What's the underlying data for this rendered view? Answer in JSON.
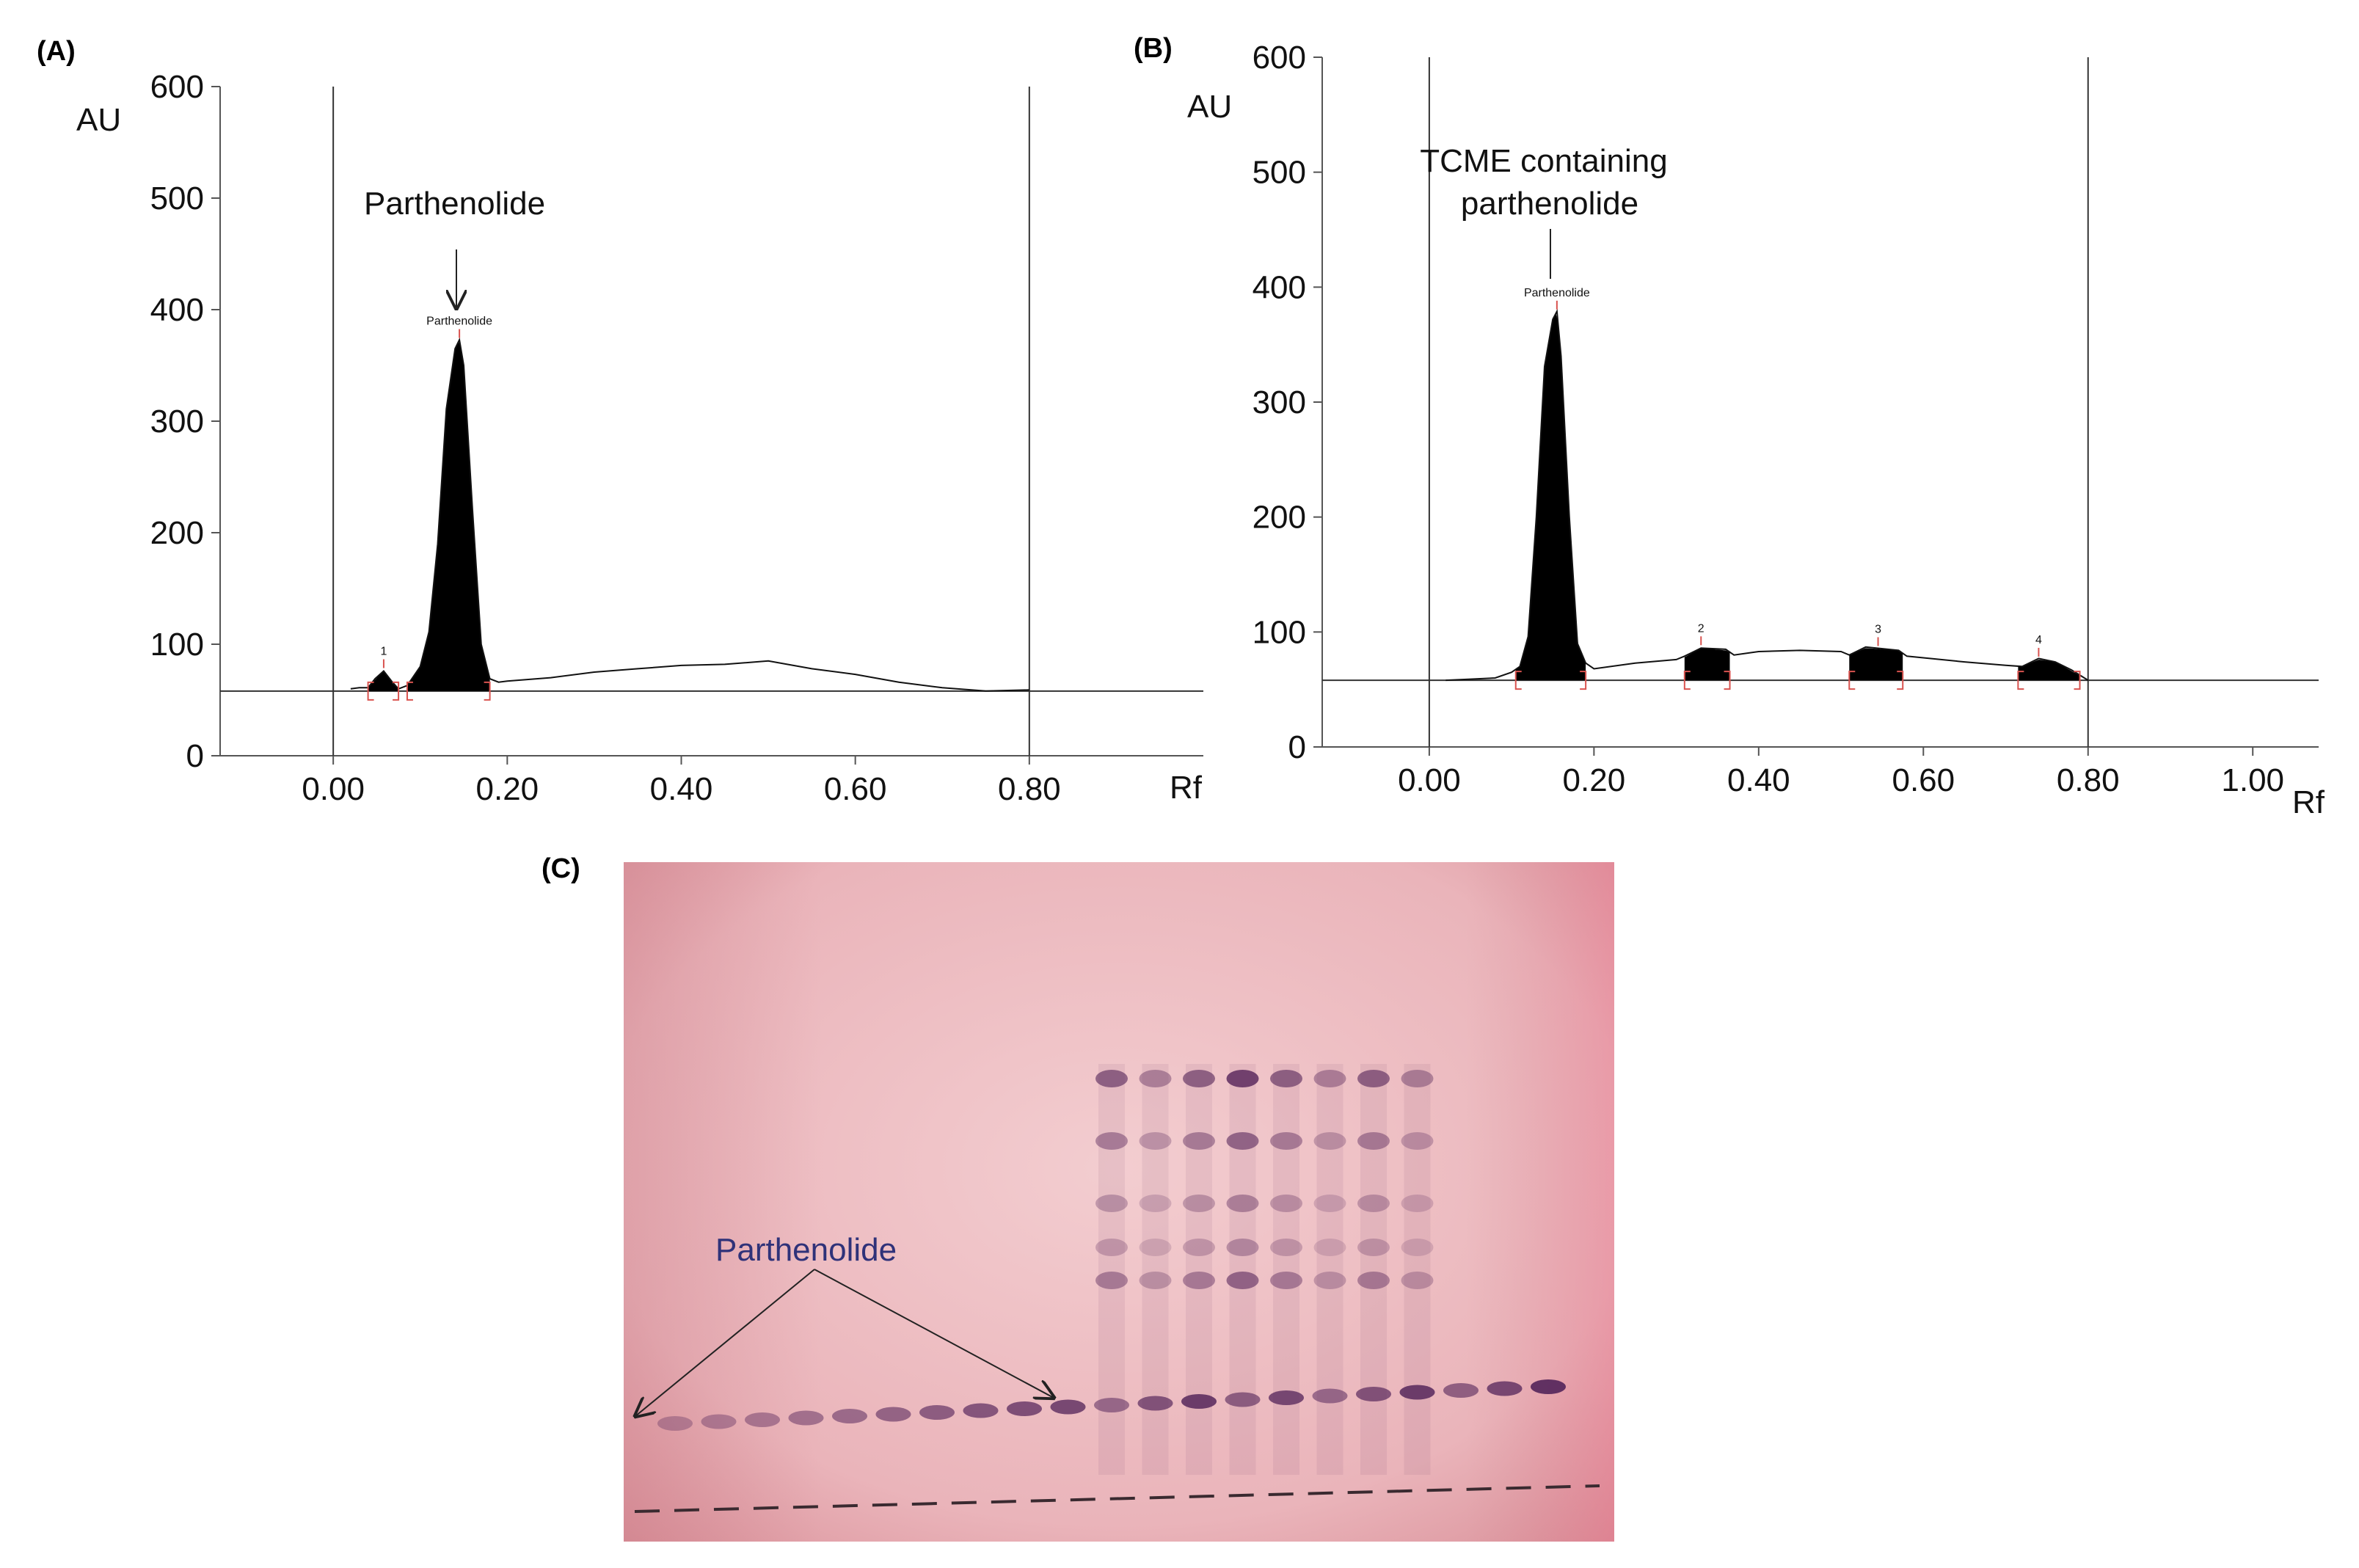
{
  "figure": {
    "panels": [
      {
        "letter": "(A)"
      },
      {
        "letter": "(B)"
      },
      {
        "letter": "(C)"
      }
    ]
  },
  "chart_data": [
    {
      "panel": "(A)",
      "type": "line",
      "title": "",
      "xlabel": "Rf",
      "ylabel": "AU",
      "xlim": [
        -0.13,
        1.0
      ],
      "ylim": [
        0,
        600
      ],
      "xticks": [
        0.0,
        0.2,
        0.4,
        0.6,
        0.8
      ],
      "xtick_labels": [
        "0.00",
        "0.20",
        "0.40",
        "0.60",
        "0.80"
      ],
      "yticks": [
        0,
        100,
        200,
        300,
        400,
        500,
        600
      ],
      "ytick_labels": [
        "0",
        "100",
        "200",
        "300",
        "400",
        "500",
        "600"
      ],
      "vertical_lines": [
        0.0,
        0.8
      ],
      "baseline": 58,
      "series": [
        {
          "x": [
            0.02,
            0.03,
            0.04,
            0.048,
            0.058,
            0.068,
            0.075,
            0.085,
            0.1,
            0.11,
            0.12,
            0.13,
            0.14,
            0.145,
            0.15,
            0.16,
            0.17,
            0.18,
            0.19,
            0.2,
            0.25,
            0.3,
            0.35,
            0.4,
            0.45,
            0.5,
            0.55,
            0.6,
            0.65,
            0.7,
            0.75,
            0.8
          ],
          "y": [
            60,
            60,
            61,
            68,
            76,
            65,
            60,
            62,
            80,
            110,
            190,
            310,
            365,
            372,
            350,
            220,
            100,
            68,
            66,
            66,
            70,
            74,
            78,
            80,
            82,
            84,
            78,
            72,
            66,
            60,
            58,
            58
          ]
        }
      ],
      "peaks": [
        {
          "label": "1",
          "start": 0.04,
          "max": 0.058,
          "end": 0.075
        },
        {
          "label": "Parthenolide",
          "start": 0.085,
          "max": 0.145,
          "end": 0.18
        }
      ],
      "annotations": [
        {
          "text": "Parthenolide",
          "x": 0.145,
          "y": 490
        }
      ]
    },
    {
      "panel": "(B)",
      "type": "line",
      "title": "",
      "xlabel": "Rf",
      "ylabel": "AU",
      "xlim": [
        -0.13,
        1.08
      ],
      "ylim": [
        0,
        600
      ],
      "xticks": [
        0.0,
        0.2,
        0.4,
        0.6,
        0.8,
        1.0
      ],
      "xtick_labels": [
        "0.00",
        "0.20",
        "0.40",
        "0.60",
        "0.80",
        "1.00"
      ],
      "yticks": [
        0,
        100,
        200,
        300,
        400,
        500,
        600
      ],
      "ytick_labels": [
        "0",
        "100",
        "200",
        "300",
        "400",
        "500",
        "600"
      ],
      "vertical_lines": [
        0.0,
        0.8
      ],
      "baseline": 58,
      "series": [
        {
          "x": [
            0.02,
            0.05,
            0.08,
            0.1,
            0.11,
            0.12,
            0.13,
            0.14,
            0.15,
            0.155,
            0.16,
            0.17,
            0.18,
            0.19,
            0.2,
            0.25,
            0.3,
            0.31,
            0.33,
            0.36,
            0.37,
            0.4,
            0.45,
            0.5,
            0.51,
            0.53,
            0.57,
            0.58,
            0.65,
            0.7,
            0.72,
            0.74,
            0.76,
            0.78,
            0.8
          ],
          "y": [
            58,
            58,
            60,
            64,
            70,
            95,
            200,
            330,
            372,
            378,
            340,
            200,
            90,
            72,
            68,
            72,
            76,
            78,
            86,
            84,
            80,
            82,
            84,
            82,
            80,
            86,
            84,
            78,
            74,
            70,
            70,
            76,
            74,
            66,
            58
          ]
        }
      ],
      "peaks": [
        {
          "label": "Parthenolide",
          "start": 0.105,
          "max": 0.155,
          "end": 0.19
        },
        {
          "label": "2",
          "start": 0.31,
          "max": 0.33,
          "end": 0.365
        },
        {
          "label": "3",
          "start": 0.51,
          "max": 0.545,
          "end": 0.575
        },
        {
          "label": "4",
          "start": 0.715,
          "max": 0.74,
          "end": 0.79
        }
      ],
      "annotations": [
        {
          "text": "TCME containing",
          "x": 0.15,
          "y": 510
        },
        {
          "text": "parthenolide",
          "x": 0.15,
          "y": 470
        }
      ]
    }
  ],
  "tlc_plate": {
    "label": "Parthenolide",
    "colors": {
      "plate_edge": "#d98f98",
      "plate_center": "#f3cdd0",
      "band": "#5a2a5e",
      "label": "#2f3279"
    }
  }
}
